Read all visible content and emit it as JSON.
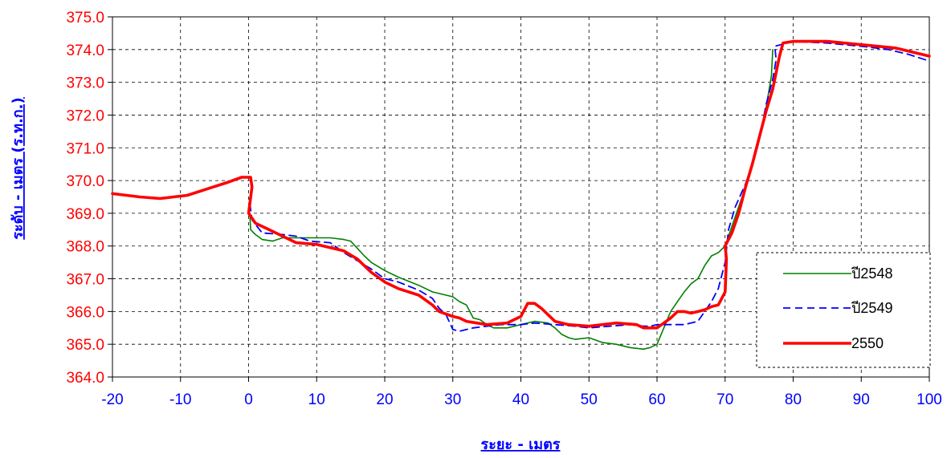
{
  "chart_data": {
    "type": "line",
    "title": "",
    "xlabel": "ระยะ - เมตร",
    "ylabel": "ระดับ - เมตร (ร.ท.ก.)",
    "xlim": [
      -20,
      100
    ],
    "ylim": [
      364.0,
      375.0
    ],
    "x_ticks": [
      "-20",
      "-10",
      "0",
      "10",
      "20",
      "30",
      "40",
      "50",
      "60",
      "70",
      "80",
      "90",
      "100"
    ],
    "y_ticks": [
      "364.0",
      "365.0",
      "366.0",
      "367.0",
      "368.0",
      "369.0",
      "370.0",
      "371.0",
      "372.0",
      "373.0",
      "374.0",
      "375.0"
    ],
    "grid": true,
    "legend_position": "bottom-right",
    "series": [
      {
        "name": "ปี2548",
        "color": "#008000",
        "style": "solid",
        "points": [
          [
            0.2,
            368.9
          ],
          [
            0.3,
            368.5
          ],
          [
            1,
            368.35
          ],
          [
            2,
            368.2
          ],
          [
            3.5,
            368.15
          ],
          [
            5,
            368.25
          ],
          [
            7,
            368.25
          ],
          [
            10,
            368.25
          ],
          [
            12,
            368.25
          ],
          [
            14,
            368.2
          ],
          [
            15,
            368.15
          ],
          [
            17,
            367.7
          ],
          [
            18,
            367.5
          ],
          [
            20,
            367.25
          ],
          [
            22,
            367.05
          ],
          [
            25,
            366.8
          ],
          [
            27,
            366.6
          ],
          [
            30,
            366.45
          ],
          [
            31,
            366.3
          ],
          [
            32,
            366.2
          ],
          [
            33,
            365.8
          ],
          [
            34,
            365.75
          ],
          [
            35,
            365.6
          ],
          [
            36,
            365.5
          ],
          [
            38,
            365.5
          ],
          [
            40,
            365.6
          ],
          [
            42,
            365.7
          ],
          [
            44,
            365.65
          ],
          [
            45,
            365.5
          ],
          [
            46,
            365.3
          ],
          [
            47,
            365.2
          ],
          [
            48,
            365.15
          ],
          [
            50,
            365.2
          ],
          [
            52,
            365.05
          ],
          [
            54,
            365.0
          ],
          [
            56,
            364.9
          ],
          [
            58,
            364.85
          ],
          [
            59,
            364.9
          ],
          [
            60,
            365.0
          ],
          [
            61,
            365.5
          ],
          [
            62,
            366.0
          ],
          [
            63,
            366.3
          ],
          [
            64,
            366.6
          ],
          [
            65,
            366.85
          ],
          [
            66,
            367.0
          ],
          [
            67,
            367.4
          ],
          [
            68,
            367.7
          ],
          [
            69,
            367.8
          ],
          [
            70,
            368.0
          ],
          [
            71,
            368.6
          ],
          [
            72,
            369.2
          ],
          [
            73,
            369.8
          ],
          [
            74,
            370.5
          ],
          [
            75,
            371.3
          ],
          [
            76,
            372.2
          ],
          [
            76.8,
            373.2
          ],
          [
            77,
            374.0
          ]
        ]
      },
      {
        "name": "ปี2549",
        "color": "#0000ff",
        "style": "dashed",
        "points": [
          [
            0.2,
            369.3
          ],
          [
            0.5,
            368.8
          ],
          [
            2,
            368.4
          ],
          [
            5,
            368.35
          ],
          [
            7,
            368.3
          ],
          [
            9,
            368.15
          ],
          [
            12,
            368.1
          ],
          [
            14,
            367.8
          ],
          [
            16,
            367.55
          ],
          [
            18,
            367.3
          ],
          [
            20,
            367.0
          ],
          [
            22,
            366.9
          ],
          [
            25,
            366.65
          ],
          [
            27,
            366.4
          ],
          [
            28,
            366.1
          ],
          [
            29,
            365.9
          ],
          [
            30,
            365.45
          ],
          [
            31,
            365.4
          ],
          [
            33,
            365.5
          ],
          [
            35,
            365.55
          ],
          [
            37,
            365.6
          ],
          [
            40,
            365.6
          ],
          [
            42,
            365.65
          ],
          [
            45,
            365.6
          ],
          [
            48,
            365.55
          ],
          [
            50,
            365.5
          ],
          [
            53,
            365.55
          ],
          [
            56,
            365.6
          ],
          [
            58,
            365.55
          ],
          [
            59,
            365.55
          ],
          [
            60,
            365.6
          ],
          [
            62,
            365.6
          ],
          [
            64,
            365.6
          ],
          [
            66,
            365.7
          ],
          [
            67,
            366.0
          ],
          [
            68,
            366.3
          ],
          [
            69,
            366.7
          ],
          [
            70,
            367.5
          ],
          [
            70.5,
            368.5
          ],
          [
            71.5,
            369.2
          ],
          [
            73,
            369.9
          ],
          [
            74,
            370.5
          ],
          [
            75,
            371.2
          ],
          [
            76,
            372.3
          ],
          [
            77,
            373.1
          ],
          [
            77.5,
            373.7
          ],
          [
            77.3,
            374.1
          ],
          [
            80,
            374.25
          ],
          [
            85,
            374.2
          ],
          [
            90,
            374.1
          ],
          [
            94,
            374.0
          ],
          [
            97,
            373.85
          ],
          [
            100,
            373.65
          ]
        ]
      },
      {
        "name": "2550",
        "color": "#ff0000",
        "style": "solid",
        "points": [
          [
            -20,
            369.6
          ],
          [
            -16,
            369.5
          ],
          [
            -13,
            369.45
          ],
          [
            -9,
            369.55
          ],
          [
            -6,
            369.75
          ],
          [
            -3,
            369.95
          ],
          [
            -1,
            370.1
          ],
          [
            0.3,
            370.1
          ],
          [
            0.5,
            369.8
          ],
          [
            0,
            369.0
          ],
          [
            1,
            368.7
          ],
          [
            3,
            368.5
          ],
          [
            5,
            368.3
          ],
          [
            7,
            368.1
          ],
          [
            10,
            368.05
          ],
          [
            12,
            367.95
          ],
          [
            14,
            367.85
          ],
          [
            16,
            367.6
          ],
          [
            18,
            367.2
          ],
          [
            20,
            366.9
          ],
          [
            22,
            366.7
          ],
          [
            25,
            366.5
          ],
          [
            27,
            366.2
          ],
          [
            28,
            366.0
          ],
          [
            30,
            365.85
          ],
          [
            31,
            365.8
          ],
          [
            32,
            365.7
          ],
          [
            35,
            365.6
          ],
          [
            38,
            365.65
          ],
          [
            40,
            365.85
          ],
          [
            41,
            366.25
          ],
          [
            42,
            366.25
          ],
          [
            43,
            366.1
          ],
          [
            45,
            365.7
          ],
          [
            47,
            365.6
          ],
          [
            50,
            365.55
          ],
          [
            52,
            365.6
          ],
          [
            54,
            365.65
          ],
          [
            57,
            365.6
          ],
          [
            58,
            365.5
          ],
          [
            60,
            365.5
          ],
          [
            61,
            365.65
          ],
          [
            62,
            365.8
          ],
          [
            63,
            366.0
          ],
          [
            64,
            366.0
          ],
          [
            65,
            365.95
          ],
          [
            66,
            366.0
          ],
          [
            67,
            366.05
          ],
          [
            68,
            366.15
          ],
          [
            69,
            366.2
          ],
          [
            70,
            366.6
          ],
          [
            70.2,
            367.6
          ],
          [
            70,
            368.0
          ],
          [
            71,
            368.4
          ],
          [
            72,
            369.0
          ],
          [
            73,
            369.8
          ],
          [
            74,
            370.5
          ],
          [
            75,
            371.3
          ],
          [
            76,
            372.1
          ],
          [
            77,
            372.8
          ],
          [
            78,
            373.8
          ],
          [
            78.5,
            374.2
          ],
          [
            80,
            374.25
          ],
          [
            85,
            374.25
          ],
          [
            90,
            374.15
          ],
          [
            95,
            374.05
          ],
          [
            100,
            373.8
          ]
        ]
      }
    ]
  }
}
